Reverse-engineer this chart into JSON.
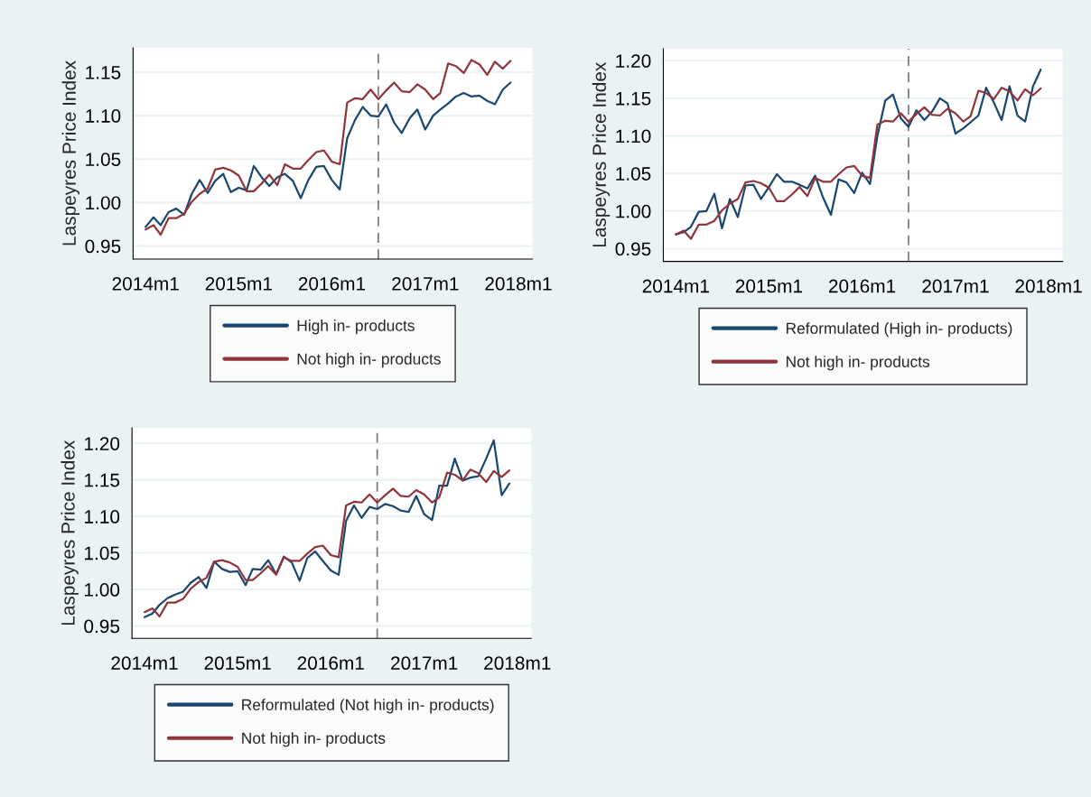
{
  "chart_data": [
    {
      "type": "line",
      "ylabel": "Laspeyres Price Index",
      "x": [
        "2014-01",
        "2014-02",
        "2014-03",
        "2014-04",
        "2014-05",
        "2014-06",
        "2014-07",
        "2014-08",
        "2014-09",
        "2014-10",
        "2014-11",
        "2014-12",
        "2015-01",
        "2015-02",
        "2015-03",
        "2015-04",
        "2015-05",
        "2015-06",
        "2015-07",
        "2015-08",
        "2015-09",
        "2015-10",
        "2015-11",
        "2015-12",
        "2016-01",
        "2016-02",
        "2016-03",
        "2016-04",
        "2016-05",
        "2016-06",
        "2016-07",
        "2016-08",
        "2016-09",
        "2016-10",
        "2016-11",
        "2016-12",
        "2017-01",
        "2017-02",
        "2017-03",
        "2017-04",
        "2017-05",
        "2017-06",
        "2017-07",
        "2017-08",
        "2017-09",
        "2017-10",
        "2017-11",
        "2017-12"
      ],
      "xlim": [
        "2013-11-13",
        "2018-02-25"
      ],
      "xticks": [
        {
          "value": "2014-01",
          "label": "2014m1"
        },
        {
          "value": "2015-01",
          "label": "2015m1"
        },
        {
          "value": "2016-01",
          "label": "2016m1"
        },
        {
          "value": "2017-01",
          "label": "2017m1"
        },
        {
          "value": "2018-01",
          "label": "2018m1"
        }
      ],
      "ylim": [
        0.935,
        1.178
      ],
      "yticks": [
        {
          "value": 0.95,
          "label": "0.95"
        },
        {
          "value": 1.0,
          "label": "1.00"
        },
        {
          "value": 1.05,
          "label": "1.05"
        },
        {
          "value": 1.1,
          "label": "1.10"
        },
        {
          "value": 1.15,
          "label": "1.15"
        }
      ],
      "grid": "y",
      "legend": "bottom",
      "ref_lines": [
        {
          "axis": "x",
          "value": "2016-07",
          "color": "#7f7f7f",
          "line_style": "dashed"
        }
      ],
      "series": [
        {
          "name": "High in- products",
          "color": "#1a476f",
          "values": [
            0.972,
            0.983,
            0.974,
            0.989,
            0.993,
            0.986,
            1.01,
            1.026,
            1.011,
            1.025,
            1.033,
            1.012,
            1.017,
            1.014,
            1.042,
            1.029,
            1.019,
            1.029,
            1.033,
            1.025,
            1.005,
            1.026,
            1.041,
            1.042,
            1.026,
            1.015,
            1.074,
            1.095,
            1.11,
            1.1,
            1.099,
            1.113,
            1.092,
            1.08,
            1.097,
            1.107,
            1.084,
            1.1,
            1.107,
            1.114,
            1.122,
            1.126,
            1.122,
            1.123,
            1.117,
            1.113,
            1.13,
            1.138
          ]
        },
        {
          "name": "Not high in- products",
          "color": "#90353b",
          "values": [
            0.969,
            0.974,
            0.963,
            0.982,
            0.982,
            0.987,
            1.001,
            1.01,
            1.016,
            1.038,
            1.04,
            1.037,
            1.031,
            1.013,
            1.013,
            1.022,
            1.032,
            1.02,
            1.044,
            1.039,
            1.039,
            1.049,
            1.058,
            1.06,
            1.047,
            1.044,
            1.115,
            1.12,
            1.119,
            1.13,
            1.119,
            1.129,
            1.138,
            1.128,
            1.127,
            1.136,
            1.13,
            1.119,
            1.126,
            1.16,
            1.157,
            1.149,
            1.164,
            1.159,
            1.147,
            1.162,
            1.154,
            1.163
          ]
        }
      ]
    },
    {
      "type": "line",
      "ylabel": "Laspeyres Price Index",
      "x": [
        "2014-01",
        "2014-02",
        "2014-03",
        "2014-04",
        "2014-05",
        "2014-06",
        "2014-07",
        "2014-08",
        "2014-09",
        "2014-10",
        "2014-11",
        "2014-12",
        "2015-01",
        "2015-02",
        "2015-03",
        "2015-04",
        "2015-05",
        "2015-06",
        "2015-07",
        "2015-08",
        "2015-09",
        "2015-10",
        "2015-11",
        "2015-12",
        "2016-01",
        "2016-02",
        "2016-03",
        "2016-04",
        "2016-05",
        "2016-06",
        "2016-07",
        "2016-08",
        "2016-09",
        "2016-10",
        "2016-11",
        "2016-12",
        "2017-01",
        "2017-02",
        "2017-03",
        "2017-04",
        "2017-05",
        "2017-06",
        "2017-07",
        "2017-08",
        "2017-09",
        "2017-10",
        "2017-11",
        "2017-12"
      ],
      "xlim": [
        "2013-11-13",
        "2018-02-25"
      ],
      "xticks": [
        {
          "value": "2014-01",
          "label": "2014m1"
        },
        {
          "value": "2015-01",
          "label": "2015m1"
        },
        {
          "value": "2016-01",
          "label": "2016m1"
        },
        {
          "value": "2017-01",
          "label": "2017m1"
        },
        {
          "value": "2018-01",
          "label": "2018m1"
        }
      ],
      "ylim": [
        0.933,
        1.216
      ],
      "yticks": [
        {
          "value": 0.95,
          "label": "0.95"
        },
        {
          "value": 1.0,
          "label": "1.00"
        },
        {
          "value": 1.05,
          "label": "1.05"
        },
        {
          "value": 1.1,
          "label": "1.10"
        },
        {
          "value": 1.15,
          "label": "1.15"
        },
        {
          "value": 1.2,
          "label": "1.20"
        }
      ],
      "grid": "y",
      "legend": "bottom",
      "ref_lines": [
        {
          "axis": "x",
          "value": "2016-07",
          "color": "#7f7f7f",
          "line_style": "dashed"
        }
      ],
      "series": [
        {
          "name": "Reformulated (High in- products)",
          "color": "#1a476f",
          "values": [
            0.969,
            0.972,
            0.979,
            0.999,
            1.0,
            1.023,
            0.977,
            1.016,
            0.992,
            1.034,
            1.035,
            1.016,
            1.032,
            1.049,
            1.039,
            1.039,
            1.035,
            1.03,
            1.047,
            1.018,
            0.995,
            1.042,
            1.038,
            1.024,
            1.051,
            1.036,
            1.1,
            1.147,
            1.155,
            1.123,
            1.112,
            1.134,
            1.121,
            1.132,
            1.15,
            1.143,
            1.103,
            1.11,
            1.118,
            1.127,
            1.164,
            1.144,
            1.121,
            1.166,
            1.127,
            1.119,
            1.166,
            1.188
          ]
        },
        {
          "name": "Not high in- products",
          "color": "#90353b",
          "values": [
            0.969,
            0.974,
            0.963,
            0.982,
            0.982,
            0.987,
            1.001,
            1.01,
            1.016,
            1.038,
            1.04,
            1.037,
            1.031,
            1.013,
            1.013,
            1.022,
            1.032,
            1.02,
            1.044,
            1.039,
            1.039,
            1.049,
            1.058,
            1.06,
            1.047,
            1.044,
            1.115,
            1.12,
            1.119,
            1.13,
            1.119,
            1.129,
            1.138,
            1.128,
            1.127,
            1.136,
            1.13,
            1.119,
            1.126,
            1.16,
            1.157,
            1.149,
            1.164,
            1.159,
            1.147,
            1.162,
            1.154,
            1.163
          ]
        }
      ]
    },
    {
      "type": "line",
      "ylabel": "Laspeyres Price Index",
      "x": [
        "2014-01",
        "2014-02",
        "2014-03",
        "2014-04",
        "2014-05",
        "2014-06",
        "2014-07",
        "2014-08",
        "2014-09",
        "2014-10",
        "2014-11",
        "2014-12",
        "2015-01",
        "2015-02",
        "2015-03",
        "2015-04",
        "2015-05",
        "2015-06",
        "2015-07",
        "2015-08",
        "2015-09",
        "2015-10",
        "2015-11",
        "2015-12",
        "2016-01",
        "2016-02",
        "2016-03",
        "2016-04",
        "2016-05",
        "2016-06",
        "2016-07",
        "2016-08",
        "2016-09",
        "2016-10",
        "2016-11",
        "2016-12",
        "2017-01",
        "2017-02",
        "2017-03",
        "2017-04",
        "2017-05",
        "2017-06",
        "2017-07",
        "2017-08",
        "2017-09",
        "2017-10",
        "2017-11",
        "2017-12"
      ],
      "xlim": [
        "2013-11-13",
        "2018-02-25"
      ],
      "xticks": [
        {
          "value": "2014-01",
          "label": "2014m1"
        },
        {
          "value": "2015-01",
          "label": "2015m1"
        },
        {
          "value": "2016-01",
          "label": "2016m1"
        },
        {
          "value": "2017-01",
          "label": "2017m1"
        },
        {
          "value": "2018-01",
          "label": "2018m1"
        }
      ],
      "ylim": [
        0.933,
        1.221
      ],
      "yticks": [
        {
          "value": 0.95,
          "label": "0.95"
        },
        {
          "value": 1.0,
          "label": "1.00"
        },
        {
          "value": 1.05,
          "label": "1.05"
        },
        {
          "value": 1.1,
          "label": "1.10"
        },
        {
          "value": 1.15,
          "label": "1.15"
        },
        {
          "value": 1.2,
          "label": "1.20"
        }
      ],
      "grid": "y",
      "legend": "bottom",
      "ref_lines": [
        {
          "axis": "x",
          "value": "2016-07",
          "color": "#7f7f7f",
          "line_style": "dashed"
        }
      ],
      "series": [
        {
          "name": "Reformulated (Not high in- products)",
          "color": "#1a476f",
          "values": [
            0.962,
            0.967,
            0.979,
            0.988,
            0.993,
            0.997,
            1.009,
            1.017,
            1.002,
            1.038,
            1.028,
            1.024,
            1.025,
            1.006,
            1.028,
            1.027,
            1.04,
            1.021,
            1.045,
            1.037,
            1.012,
            1.043,
            1.052,
            1.039,
            1.026,
            1.02,
            1.094,
            1.115,
            1.098,
            1.113,
            1.11,
            1.117,
            1.114,
            1.108,
            1.106,
            1.128,
            1.103,
            1.095,
            1.142,
            1.142,
            1.179,
            1.149,
            1.153,
            1.155,
            1.179,
            1.204,
            1.129,
            1.145
          ]
        },
        {
          "name": "Not high in- products",
          "color": "#90353b",
          "values": [
            0.969,
            0.974,
            0.963,
            0.982,
            0.982,
            0.987,
            1.001,
            1.01,
            1.016,
            1.038,
            1.04,
            1.037,
            1.031,
            1.013,
            1.013,
            1.022,
            1.032,
            1.02,
            1.044,
            1.039,
            1.039,
            1.049,
            1.058,
            1.06,
            1.047,
            1.044,
            1.115,
            1.12,
            1.119,
            1.13,
            1.119,
            1.129,
            1.138,
            1.128,
            1.127,
            1.136,
            1.13,
            1.119,
            1.126,
            1.16,
            1.157,
            1.149,
            1.164,
            1.159,
            1.147,
            1.162,
            1.154,
            1.163
          ]
        }
      ]
    }
  ]
}
